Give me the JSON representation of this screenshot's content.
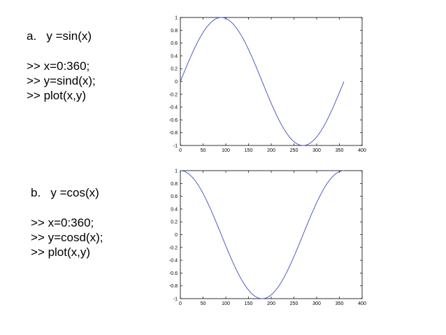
{
  "section_a": {
    "heading": "a.   y =sin(x)",
    "code": [
      ">> x=0:360;",
      ">> y=sind(x);",
      ">> plot(x,y)"
    ]
  },
  "section_b": {
    "heading": "b.   y =cos(x)",
    "code": [
      ">> x=0:360;",
      ">> y=cosd(x);",
      ">> plot(x,y)"
    ]
  },
  "chart_data": [
    {
      "type": "line",
      "function": "sin",
      "title": "",
      "xlabel": "",
      "ylabel": "",
      "xlim": [
        0,
        400
      ],
      "ylim": [
        -1,
        1
      ],
      "xticks": [
        0,
        50,
        100,
        150,
        200,
        250,
        300,
        350,
        400
      ],
      "yticks": [
        -1,
        -0.8,
        -0.6,
        -0.4,
        -0.2,
        0,
        0.2,
        0.4,
        0.6,
        0.8,
        1
      ],
      "xtick_labels": [
        "0",
        "50",
        "100",
        "150",
        "200",
        "250",
        "300",
        "350",
        "400"
      ],
      "ytick_labels": [
        "-1",
        "-0.8",
        "-0.6",
        "-0.4",
        "-0.2",
        "0",
        "0.2",
        "0.4",
        "0.6",
        "0.8",
        "1"
      ],
      "grid": false,
      "line_color": "#3b4cc0",
      "series": [
        {
          "x": [
            0,
            30,
            60,
            90,
            120,
            150,
            180,
            210,
            240,
            270,
            300,
            330,
            360
          ],
          "y": [
            0,
            0.5,
            0.866,
            1,
            0.866,
            0.5,
            0,
            -0.5,
            -0.866,
            -1,
            -0.866,
            -0.5,
            0
          ]
        }
      ]
    },
    {
      "type": "line",
      "function": "cos",
      "title": "",
      "xlabel": "",
      "ylabel": "",
      "xlim": [
        0,
        400
      ],
      "ylim": [
        -1,
        1
      ],
      "xticks": [
        0,
        50,
        100,
        150,
        200,
        250,
        300,
        350,
        400
      ],
      "yticks": [
        -1,
        -0.8,
        -0.6,
        -0.4,
        -0.2,
        0,
        0.2,
        0.4,
        0.6,
        0.8,
        1
      ],
      "xtick_labels": [
        "0",
        "50",
        "100",
        "150",
        "200",
        "250",
        "300",
        "350",
        "400"
      ],
      "ytick_labels": [
        "-1",
        "-0.8",
        "-0.6",
        "-0.4",
        "-0.2",
        "0",
        "0.2",
        "0.4",
        "0.6",
        "0.8",
        "1"
      ],
      "grid": false,
      "line_color": "#3b4cc0",
      "series": [
        {
          "x": [
            0,
            30,
            60,
            90,
            120,
            150,
            180,
            210,
            240,
            270,
            300,
            330,
            360
          ],
          "y": [
            1,
            0.866,
            0.5,
            0,
            -0.5,
            -0.866,
            -1,
            -0.866,
            -0.5,
            0,
            0.5,
            0.866,
            1
          ]
        }
      ]
    }
  ]
}
